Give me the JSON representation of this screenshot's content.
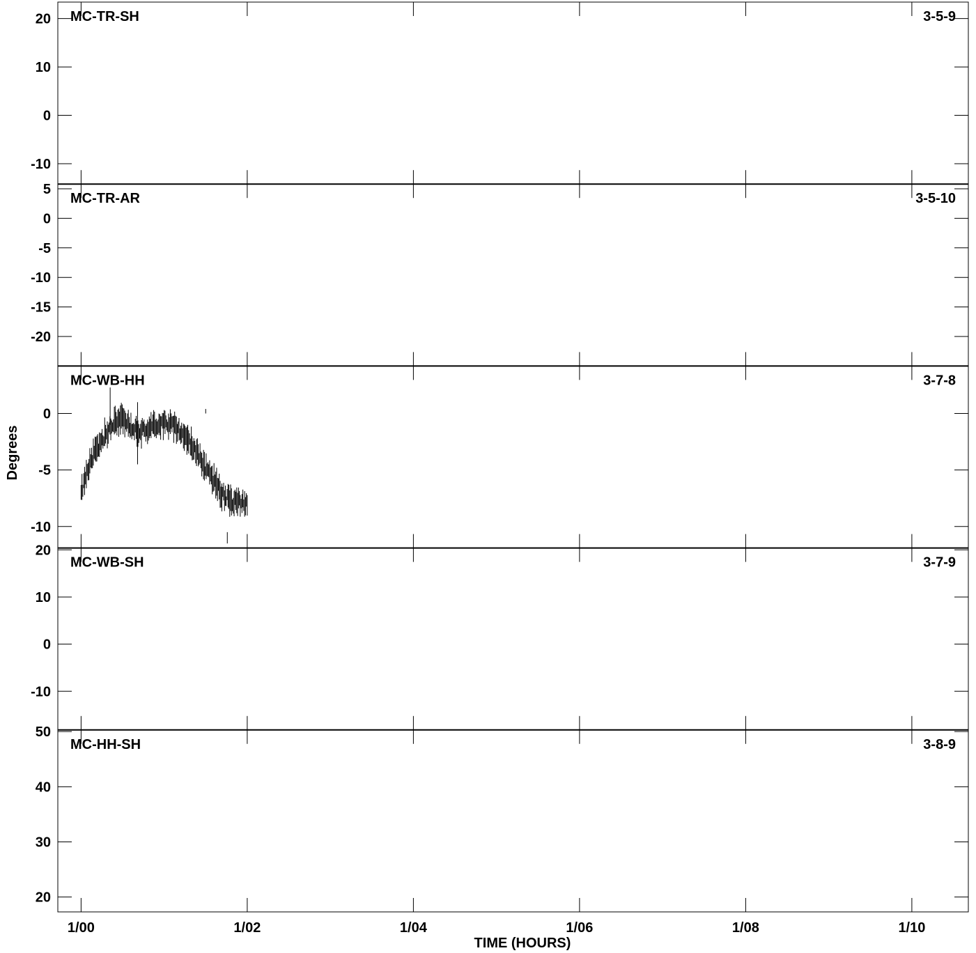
{
  "chart_data": {
    "type": "line",
    "xlabel": "TIME (HOURS)",
    "ylabel": "Degrees",
    "x_ticks": [
      "1/00",
      "1/02",
      "1/04",
      "1/06",
      "1/08",
      "1/10"
    ],
    "x_range_hours": [
      -0.28,
      10.68
    ],
    "grid": false,
    "panels": [
      {
        "label_left": "MC-TR-SH",
        "label_right": "3-5-9",
        "ylim": [
          -14.2,
          23.4
        ],
        "y_ticks": [
          "20",
          "10",
          "0",
          "-10"
        ],
        "series": []
      },
      {
        "label_left": "MC-TR-AR",
        "label_right": "3-5-10",
        "ylim": [
          -25.0,
          5.8
        ],
        "y_ticks": [
          "5",
          "0",
          "-5",
          "-10",
          "-15",
          "-20"
        ],
        "series": []
      },
      {
        "label_left": "MC-WB-HH",
        "label_right": "3-7-8",
        "ylim": [
          -11.9,
          4.2
        ],
        "y_ticks": [
          "0",
          "-5",
          "-10"
        ],
        "series": [
          {
            "style": "vertical-segments",
            "x_hours": [
              0.0,
              0.1,
              0.2,
              0.3,
              0.4,
              0.5,
              0.6,
              0.7,
              0.8,
              0.9,
              1.0,
              1.1,
              1.2,
              1.3,
              1.4,
              1.5,
              1.6,
              1.7,
              1.8,
              1.9,
              2.0
            ],
            "values": [
              -7.0,
              -4.5,
              -3.0,
              -1.8,
              -0.8,
              -0.5,
              -1.2,
              -1.5,
              -1.4,
              -1.0,
              -0.8,
              -1.0,
              -1.6,
              -2.4,
              -3.5,
              -4.8,
              -6.0,
              -7.2,
              -7.8,
              -7.8,
              -7.9
            ],
            "spread": 1.3,
            "outliers": [
              {
                "x": 0.35,
                "low": -1.0,
                "high": 2.3
              },
              {
                "x": 0.68,
                "low": -4.5,
                "high": 1.0
              },
              {
                "x": 1.5,
                "low": 0.0,
                "high": 0.4
              },
              {
                "x": 1.76,
                "low": -11.5,
                "high": -10.5
              }
            ]
          }
        ]
      },
      {
        "label_left": "MC-WB-SH",
        "label_right": "3-7-9",
        "ylim": [
          -18.2,
          20.4
        ],
        "y_ticks": [
          "20",
          "10",
          "0",
          "-10"
        ],
        "series": []
      },
      {
        "label_left": "MC-HH-SH",
        "label_right": "3-8-9",
        "ylim": [
          17.3,
          50.3
        ],
        "y_ticks": [
          "50",
          "40",
          "30",
          "20"
        ],
        "series": []
      }
    ]
  }
}
